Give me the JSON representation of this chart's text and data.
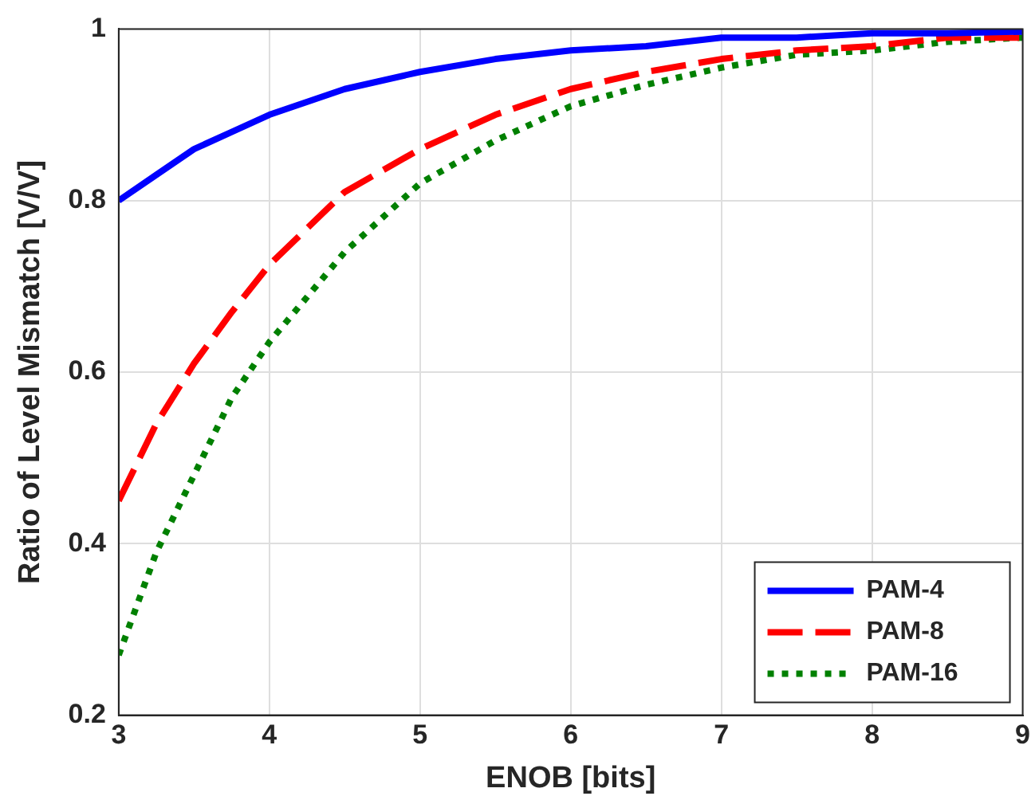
{
  "chart_data": {
    "type": "line",
    "xlabel": "ENOB [bits]",
    "ylabel": "Ratio of Level Mismatch [V/V]",
    "x": [
      3,
      3.25,
      3.5,
      3.75,
      4,
      4.5,
      5,
      5.5,
      6,
      6.5,
      7,
      7.5,
      8,
      8.5,
      9
    ],
    "series": [
      {
        "name": "PAM-4",
        "color": "#0000ff",
        "line_style": "solid",
        "values": [
          0.8,
          0.83,
          0.86,
          0.88,
          0.9,
          0.93,
          0.95,
          0.965,
          0.975,
          0.98,
          0.99,
          0.99,
          0.995,
          0.995,
          0.997
        ]
      },
      {
        "name": "PAM-8",
        "color": "#ff0000",
        "line_style": "dashed",
        "values": [
          0.45,
          0.54,
          0.61,
          0.67,
          0.725,
          0.81,
          0.86,
          0.9,
          0.93,
          0.95,
          0.965,
          0.975,
          0.98,
          0.99,
          0.99
        ]
      },
      {
        "name": "PAM-16",
        "color": "#008000",
        "line_style": "dotted",
        "values": [
          0.27,
          0.39,
          0.48,
          0.57,
          0.635,
          0.74,
          0.82,
          0.87,
          0.91,
          0.935,
          0.955,
          0.97,
          0.975,
          0.985,
          0.99
        ]
      }
    ],
    "xlim": [
      3,
      9
    ],
    "xticks": [
      3,
      4,
      5,
      6,
      7,
      8,
      9
    ],
    "ylim": [
      0.2,
      1
    ],
    "yticks": [
      0.2,
      0.4,
      0.6,
      0.8,
      1
    ],
    "grid": true,
    "legend": "bottom right",
    "marker": "none"
  }
}
